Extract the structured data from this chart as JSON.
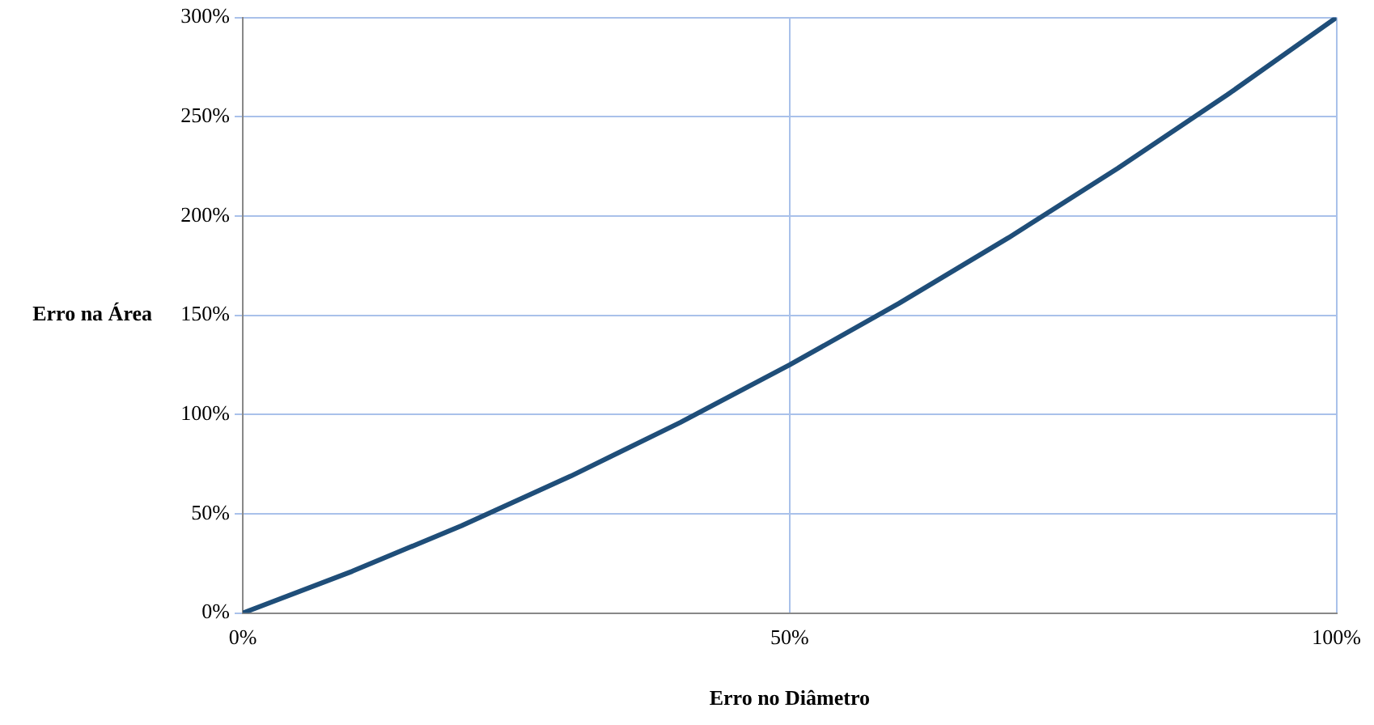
{
  "chart_data": {
    "type": "line",
    "xlabel": "Erro no Diâmetro",
    "ylabel": "Erro na Área",
    "x": [
      0,
      10,
      20,
      30,
      40,
      50,
      60,
      70,
      80,
      90,
      100
    ],
    "series": [
      {
        "color": "#1f4e79",
        "values": [
          0,
          21,
          44,
          69,
          96,
          125,
          156,
          189,
          224,
          261,
          300
        ]
      }
    ],
    "xlim": [
      0,
      100
    ],
    "ylim": [
      0,
      300
    ],
    "xticks": [
      {
        "value": 0,
        "label": "0%"
      },
      {
        "value": 50,
        "label": "50%"
      },
      {
        "value": 100,
        "label": "100%"
      }
    ],
    "yticks": [
      {
        "value": 0,
        "label": "0%"
      },
      {
        "value": 50,
        "label": "50%"
      },
      {
        "value": 100,
        "label": "100%"
      },
      {
        "value": 150,
        "label": "150%"
      },
      {
        "value": 200,
        "label": "200%"
      },
      {
        "value": 250,
        "label": "250%"
      },
      {
        "value": 300,
        "label": "300%"
      }
    ],
    "grid": true,
    "legend": false,
    "marker": "none",
    "line_style": "solid"
  }
}
